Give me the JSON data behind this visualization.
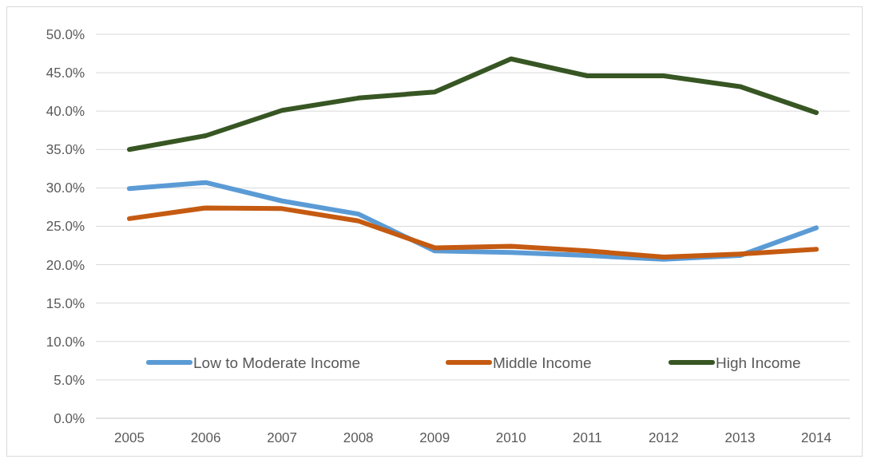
{
  "chart_data": {
    "type": "line",
    "categories": [
      "2005",
      "2006",
      "2007",
      "2008",
      "2009",
      "2010",
      "2011",
      "2012",
      "2013",
      "2014"
    ],
    "series": [
      {
        "name": "Low to Moderate Income",
        "color": "#5b9bd5",
        "values": [
          29.9,
          30.7,
          28.3,
          26.6,
          21.8,
          21.6,
          21.2,
          20.7,
          21.2,
          24.8
        ]
      },
      {
        "name": "Middle Income",
        "color": "#c55a11",
        "values": [
          26.0,
          27.4,
          27.3,
          25.7,
          22.2,
          22.4,
          21.8,
          21.0,
          21.4,
          22.0
        ]
      },
      {
        "name": "High Income",
        "color": "#375623",
        "values": [
          35.0,
          36.8,
          40.1,
          41.7,
          42.5,
          46.8,
          44.6,
          44.6,
          43.2,
          39.8
        ]
      }
    ],
    "ylim": [
      0,
      50
    ],
    "yticks": [
      {
        "value": 0,
        "label": "0.0%"
      },
      {
        "value": 5,
        "label": "5.0%"
      },
      {
        "value": 10,
        "label": "10.0%"
      },
      {
        "value": 15,
        "label": "15.0%"
      },
      {
        "value": 20,
        "label": "20.0%"
      },
      {
        "value": 25,
        "label": "25.0%"
      },
      {
        "value": 30,
        "label": "30.0%"
      },
      {
        "value": 35,
        "label": "35.0%"
      },
      {
        "value": 40,
        "label": "40.0%"
      },
      {
        "value": 45,
        "label": "45.0%"
      },
      {
        "value": 50,
        "label": "50.0%"
      }
    ],
    "grid": "y",
    "legend": "bottom",
    "marker": "none",
    "line_style": "solid"
  }
}
